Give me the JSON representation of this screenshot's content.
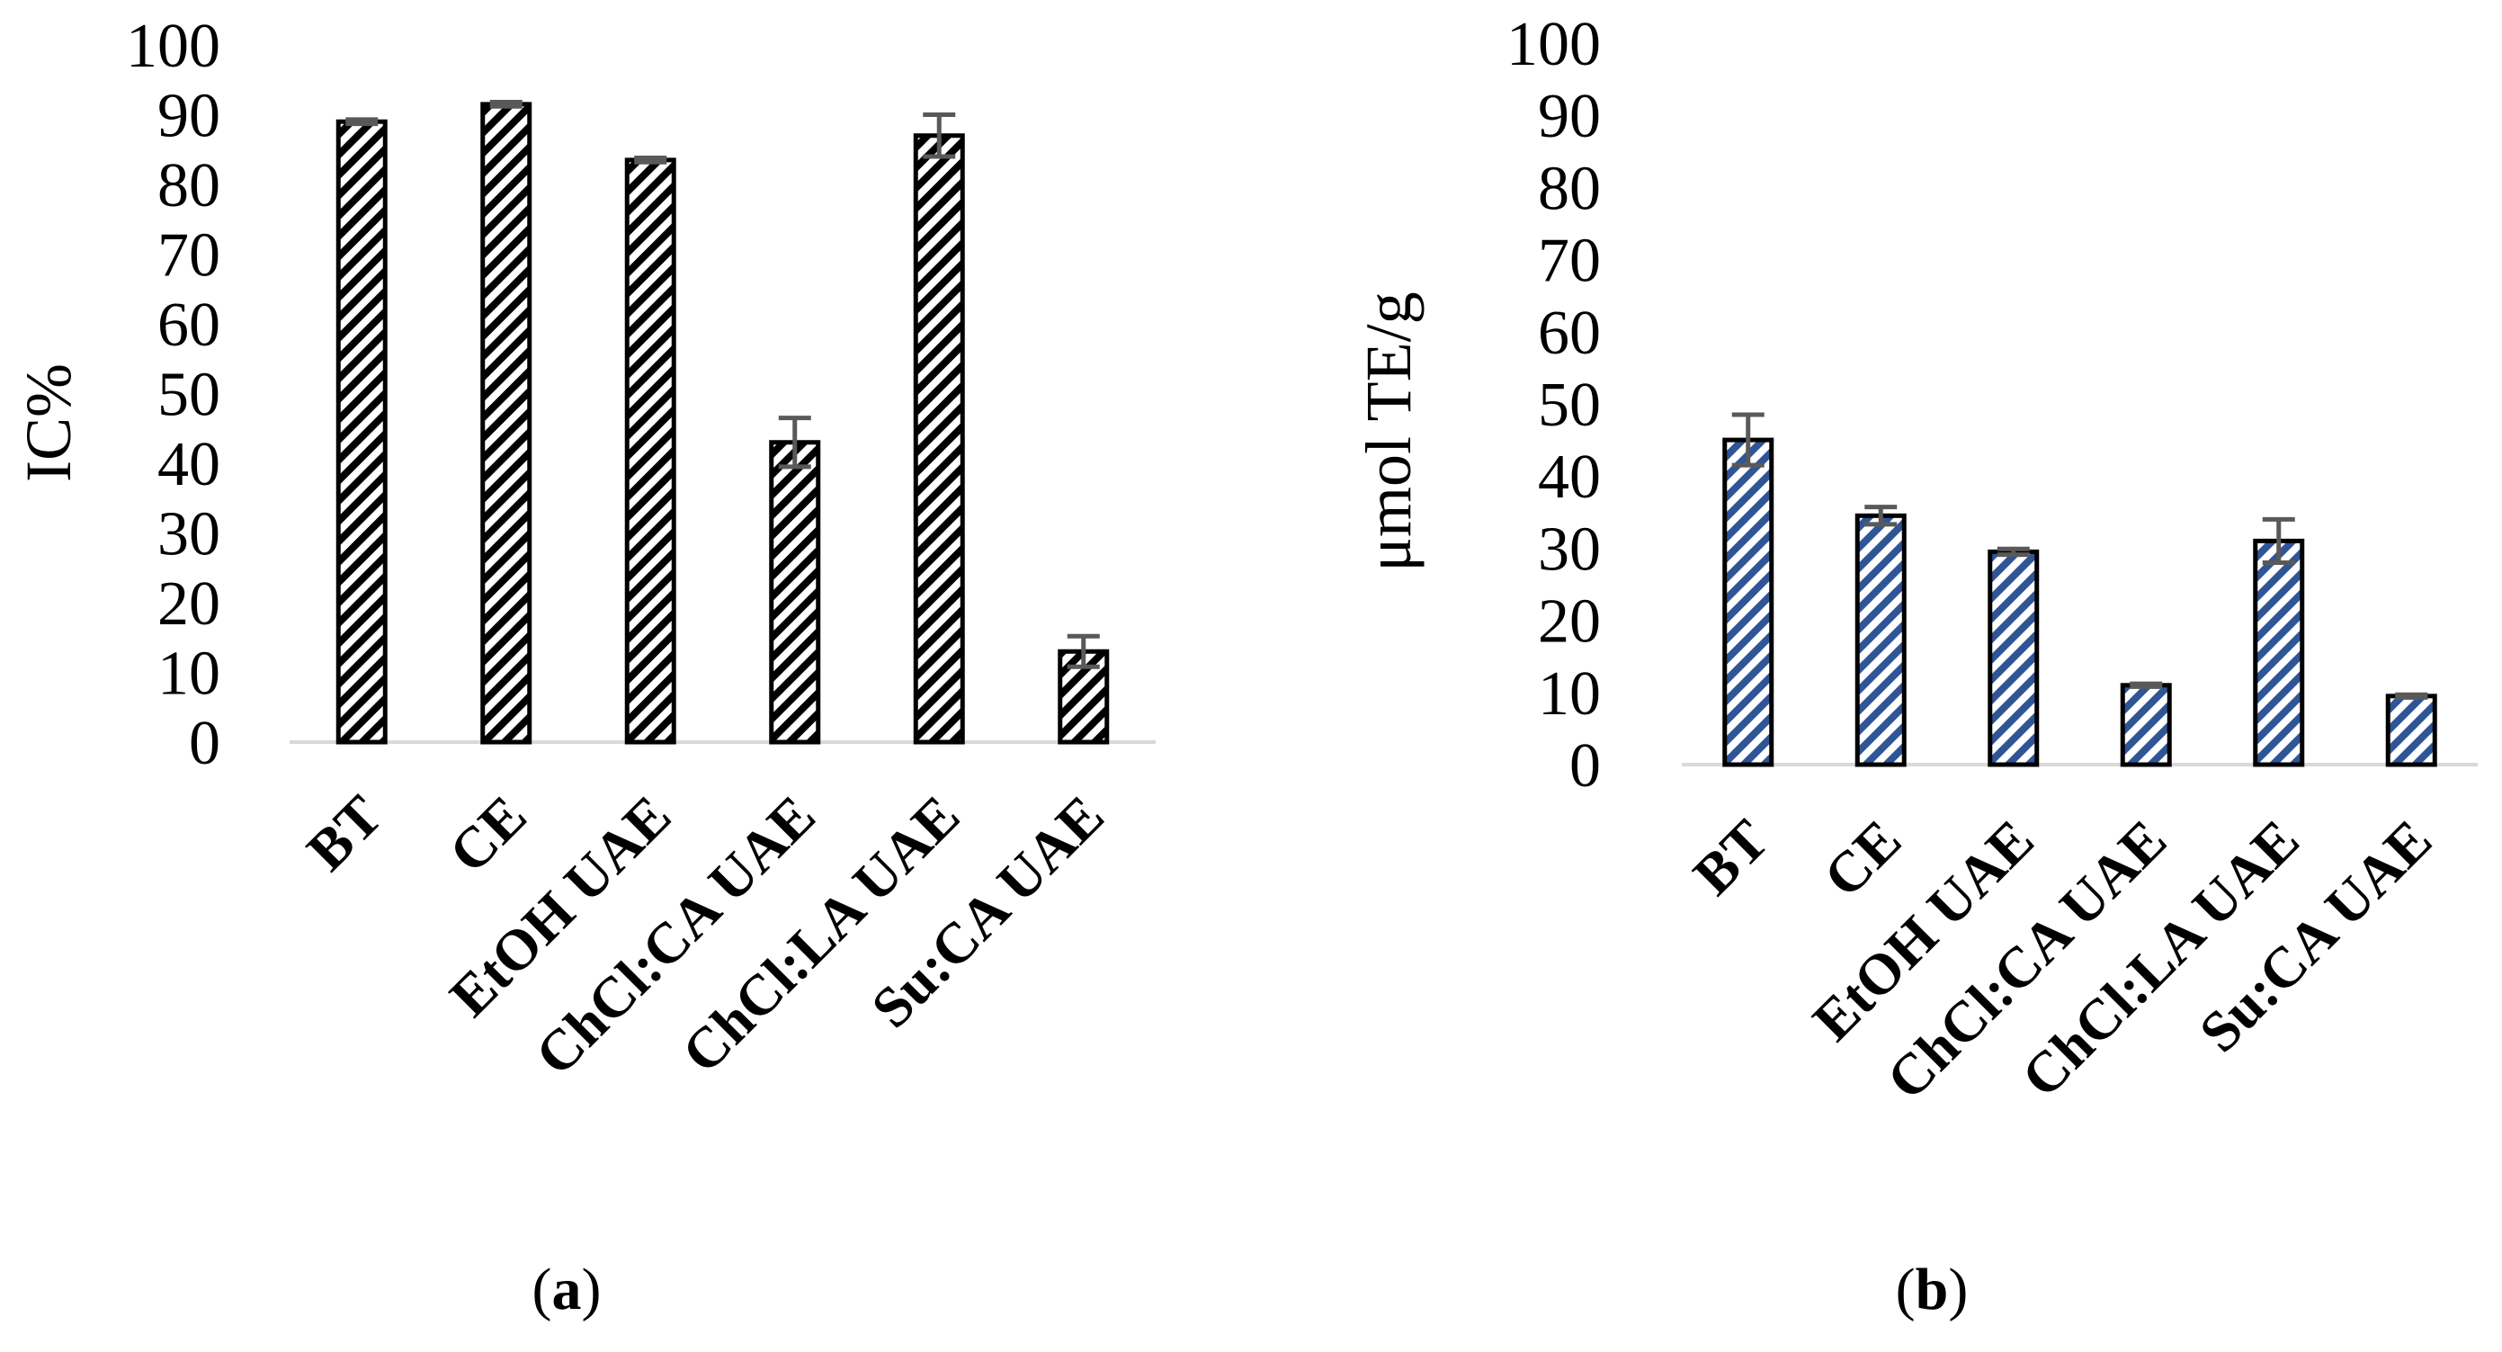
{
  "chart_data": [
    {
      "type": "bar",
      "panel": "a",
      "panel_prefix": "(",
      "panel_letter": "a",
      "panel_suffix": ")",
      "ylabel": "IC%",
      "xlabel": "",
      "ylim": [
        0,
        100
      ],
      "yticks": [
        0,
        10,
        20,
        30,
        40,
        50,
        60,
        70,
        80,
        90,
        100
      ],
      "categories": [
        "BT",
        "CE",
        "EtOH UAE",
        "ChCl:CA UAE",
        "ChCl:LA UAE",
        "Su:CA UAE"
      ],
      "values": [
        89,
        91.5,
        83.5,
        43,
        87,
        13
      ],
      "errors": [
        0.3,
        0.3,
        0.3,
        3.5,
        3,
        2.2
      ],
      "bar_pattern": "black diagonal hatch",
      "colors": {
        "bar_stroke": "#000000",
        "hatch": "#000000",
        "error_bar": "#595959",
        "axis": "#d9d9d9"
      }
    },
    {
      "type": "bar",
      "panel": "b",
      "panel_prefix": "(",
      "panel_letter": "b",
      "panel_suffix": ")",
      "ylabel": "μmol TE/g",
      "xlabel": "",
      "ylim": [
        0,
        100
      ],
      "yticks": [
        0,
        10,
        20,
        30,
        40,
        50,
        60,
        70,
        80,
        90,
        100
      ],
      "categories": [
        "BT",
        "CE",
        "EtOH UAE",
        "ChCl:CA UAE",
        "ChCl:LA UAE",
        "Su:CA UAE"
      ],
      "values": [
        45,
        34.5,
        29.5,
        11,
        31,
        9.5
      ],
      "errors": [
        3.5,
        1.2,
        0.4,
        0.2,
        3,
        0.2
      ],
      "bar_pattern": "blue diagonal hatch",
      "colors": {
        "bar_stroke": "#000000",
        "hatch": "#2f5597",
        "error_bar": "#595959",
        "axis": "#d9d9d9"
      }
    }
  ]
}
